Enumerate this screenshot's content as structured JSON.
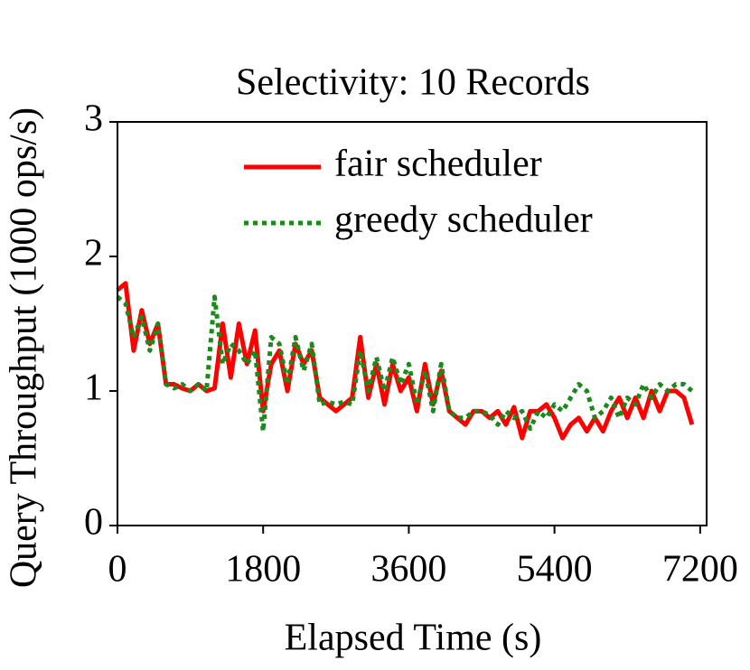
{
  "chart_data": {
    "type": "line",
    "title": "Selectivity: 10 Records",
    "x_label": "Elapsed Time (s)",
    "y_label": "Query Throughput (1000 ops/s)",
    "x": [
      0,
      100,
      200,
      300,
      400,
      500,
      600,
      700,
      800,
      900,
      1000,
      1100,
      1200,
      1300,
      1400,
      1500,
      1600,
      1700,
      1800,
      1900,
      2000,
      2100,
      2200,
      2300,
      2400,
      2500,
      2600,
      2700,
      2800,
      2900,
      3000,
      3100,
      3200,
      3300,
      3400,
      3500,
      3600,
      3700,
      3800,
      3900,
      4000,
      4100,
      4200,
      4300,
      4400,
      4500,
      4600,
      4700,
      4800,
      4900,
      5000,
      5100,
      5200,
      5300,
      5400,
      5500,
      5600,
      5700,
      5800,
      5900,
      6000,
      6100,
      6200,
      6300,
      6400,
      6500,
      6600,
      6700,
      6800,
      6900,
      7000,
      7100
    ],
    "series": [
      {
        "name": "fair scheduler",
        "color": "#ff0000",
        "dash": "solid",
        "values": [
          1.75,
          1.8,
          1.3,
          1.6,
          1.35,
          1.5,
          1.05,
          1.05,
          1.02,
          1.0,
          1.05,
          1.0,
          1.02,
          1.5,
          1.1,
          1.5,
          1.2,
          1.45,
          0.85,
          1.2,
          1.3,
          1.0,
          1.35,
          1.2,
          1.3,
          0.95,
          0.9,
          0.85,
          0.9,
          0.95,
          1.4,
          0.95,
          1.2,
          0.9,
          1.2,
          1.0,
          1.1,
          0.85,
          1.2,
          0.9,
          1.15,
          0.85,
          0.8,
          0.75,
          0.85,
          0.85,
          0.8,
          0.85,
          0.75,
          0.88,
          0.65,
          0.85,
          0.85,
          0.9,
          0.8,
          0.65,
          0.75,
          0.8,
          0.7,
          0.8,
          0.7,
          0.85,
          0.95,
          0.8,
          0.95,
          0.8,
          1.0,
          0.85,
          1.0,
          1.0,
          0.95,
          0.75
        ]
      },
      {
        "name": "greedy scheduler",
        "color": "#1a8a1a",
        "dash": "dotted",
        "values": [
          1.7,
          1.65,
          1.4,
          1.55,
          1.3,
          1.5,
          1.05,
          1.02,
          1.05,
          1.0,
          1.05,
          1.0,
          1.7,
          1.2,
          1.35,
          1.3,
          1.2,
          1.3,
          0.7,
          1.4,
          1.35,
          1.05,
          1.4,
          1.15,
          1.35,
          0.9,
          0.92,
          0.9,
          0.92,
          0.9,
          1.3,
          1.0,
          1.25,
          1.0,
          1.25,
          1.05,
          1.2,
          0.9,
          1.15,
          0.85,
          1.2,
          0.85,
          0.8,
          0.8,
          0.85,
          0.85,
          0.82,
          0.75,
          0.85,
          0.8,
          0.85,
          0.72,
          0.85,
          0.8,
          0.9,
          0.85,
          0.95,
          1.05,
          1.0,
          0.8,
          0.85,
          0.95,
          0.8,
          0.95,
          0.9,
          1.05,
          0.95,
          1.05,
          1.0,
          1.05,
          1.05,
          1.0
        ]
      }
    ],
    "xlim": [
      0,
      7280
    ],
    "ylim": [
      0,
      3
    ],
    "xticks": [
      0,
      1800,
      3600,
      5400,
      7200
    ],
    "yticks": [
      0,
      1,
      2,
      3
    ],
    "legend": "upper right"
  }
}
